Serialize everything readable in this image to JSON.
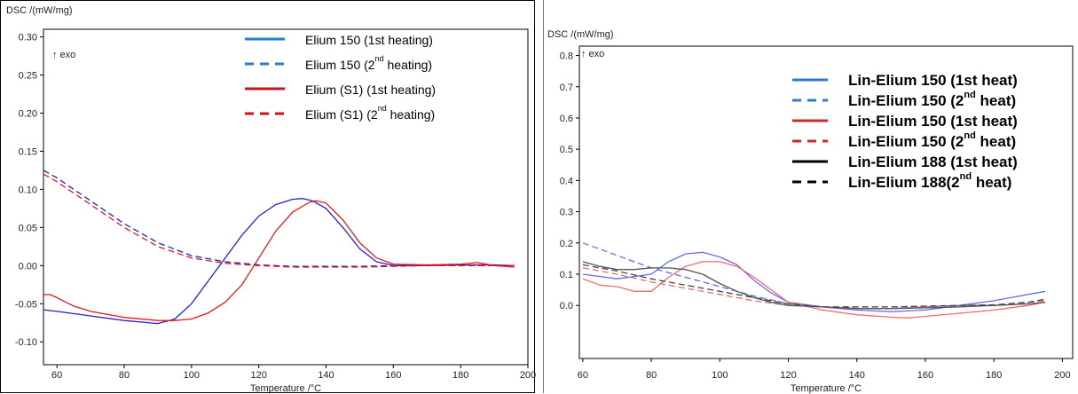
{
  "chart_data": [
    {
      "type": "line",
      "ylabel": "DSC /(mW/mg)",
      "xlabel": "Temperature /°C",
      "exo_label": "↑ exo",
      "xlim": [
        56,
        200
      ],
      "ylim": [
        -0.13,
        0.31
      ],
      "x_ticks": [
        60,
        80,
        100,
        120,
        140,
        160,
        180,
        200
      ],
      "y_ticks": [
        0.3,
        0.25,
        0.2,
        0.15,
        0.1,
        0.05,
        0.0,
        -0.05,
        -0.1
      ],
      "y_tick_labels": [
        "0.30",
        "0.25",
        "0.20",
        "0.15",
        "0.10",
        "0.05",
        "0.00",
        "-0.05",
        "-0.10"
      ],
      "grid": false,
      "legend_position": "top-center",
      "series": [
        {
          "name": "Elium 150 (1st heating)",
          "color": "#1f1fd0",
          "dash": "solid",
          "x": [
            56,
            60,
            70,
            80,
            90,
            95,
            100,
            105,
            110,
            115,
            120,
            125,
            130,
            133,
            136,
            140,
            145,
            150,
            155,
            160,
            170,
            180,
            190,
            196
          ],
          "y": [
            -0.058,
            -0.06,
            -0.066,
            -0.072,
            -0.076,
            -0.07,
            -0.05,
            -0.02,
            0.01,
            0.04,
            0.065,
            0.08,
            0.087,
            0.088,
            0.085,
            0.075,
            0.05,
            0.022,
            0.005,
            0.0,
            0.0,
            0.001,
            0.001,
            0.0
          ]
        },
        {
          "name": "Elium 150 (2nd heating)",
          "color": "#1f1fd0",
          "dash": "dashed",
          "x": [
            56,
            60,
            70,
            80,
            90,
            100,
            110,
            120,
            130,
            140,
            150,
            160,
            170,
            180,
            190,
            196
          ],
          "y": [
            0.125,
            0.115,
            0.085,
            0.055,
            0.03,
            0.013,
            0.005,
            0.001,
            -0.001,
            -0.001,
            -0.001,
            0.0,
            0.0,
            0.0,
            0.0,
            0.0
          ]
        },
        {
          "name": "Elium  (S1) (1st heating)",
          "color": "#e01818",
          "dash": "solid",
          "x": [
            56,
            58,
            60,
            65,
            70,
            80,
            90,
            95,
            100,
            105,
            110,
            115,
            120,
            125,
            130,
            135,
            137,
            140,
            145,
            150,
            155,
            160,
            170,
            180,
            185,
            190,
            196
          ],
          "y": [
            -0.038,
            -0.038,
            -0.042,
            -0.053,
            -0.06,
            -0.068,
            -0.072,
            -0.072,
            -0.07,
            -0.062,
            -0.048,
            -0.025,
            0.01,
            0.045,
            0.07,
            0.083,
            0.085,
            0.082,
            0.06,
            0.03,
            0.01,
            0.002,
            0.001,
            0.002,
            0.004,
            0.0,
            -0.002
          ]
        },
        {
          "name": "Elium (S1) (2nd heating)",
          "color": "#e01818",
          "dash": "dashed",
          "x": [
            56,
            60,
            70,
            80,
            90,
            100,
            110,
            120,
            130,
            140,
            150,
            160,
            170,
            180,
            190,
            196
          ],
          "y": [
            0.12,
            0.11,
            0.08,
            0.05,
            0.025,
            0.01,
            0.003,
            0.0,
            -0.002,
            -0.002,
            -0.002,
            -0.001,
            0.0,
            0.0,
            0.0,
            0.0
          ]
        }
      ],
      "legend": [
        {
          "pre": "Elium 150 (1st heating)",
          "sup": "",
          "post": "",
          "color": "#1f7fd6",
          "dash": "solid"
        },
        {
          "pre": "Elium 150 (2",
          "sup": "nd",
          "post": " heating)",
          "color": "#1f7fd6",
          "dash": "dashed"
        },
        {
          "pre": "Elium  (S1) (1st heating)",
          "sup": "",
          "post": "",
          "color": "#c8141e",
          "dash": "solid"
        },
        {
          "pre": "Elium (S1) (2",
          "sup": "nd",
          "post": " heating)",
          "color": "#c8141e",
          "dash": "dashed"
        }
      ]
    },
    {
      "type": "line",
      "ylabel": "DSC /(mW/mg)",
      "xlabel": "Temperature /°C",
      "exo_label": "↑ exo",
      "xlim": [
        59,
        203
      ],
      "ylim": [
        -0.17,
        0.83
      ],
      "x_ticks": [
        60,
        80,
        100,
        120,
        140,
        160,
        180,
        200
      ],
      "y_ticks": [
        0.8,
        0.7,
        0.6,
        0.5,
        0.4,
        0.3,
        0.2,
        0.1,
        0.0
      ],
      "y_tick_labels": [
        "0.8",
        "0.7",
        "0.6",
        "0.5",
        "0.4",
        "0.3",
        "0.2",
        "0.1",
        "0.0"
      ],
      "grid": false,
      "legend_position": "top-right",
      "series": [
        {
          "name": "Lin-Elium 150 (1st  heat)",
          "color": "#6a6ae6",
          "dash": "solid",
          "x": [
            60,
            70,
            80,
            85,
            90,
            95,
            100,
            105,
            110,
            115,
            120,
            130,
            140,
            150,
            160,
            170,
            180,
            190,
            195
          ],
          "y": [
            0.1,
            0.085,
            0.1,
            0.14,
            0.165,
            0.17,
            0.155,
            0.13,
            0.08,
            0.04,
            0.01,
            -0.005,
            -0.015,
            -0.02,
            -0.015,
            0.0,
            0.015,
            0.035,
            0.045
          ]
        },
        {
          "name": "Lin-Elium 150 (2nd  heat)",
          "color": "#5b6fe2",
          "dash": "dashed",
          "x": [
            60,
            70,
            80,
            90,
            100,
            110,
            120,
            130,
            140,
            150,
            160,
            170,
            180,
            190,
            195
          ],
          "y": [
            0.2,
            0.16,
            0.12,
            0.09,
            0.06,
            0.03,
            0.005,
            -0.005,
            -0.01,
            -0.01,
            -0.005,
            0.0,
            0.0,
            0.005,
            0.01
          ]
        },
        {
          "name": "Lin-Elium 150 (1st heat)",
          "color": "#ee6a6a",
          "dash": "solid",
          "x": [
            60,
            65,
            70,
            75,
            80,
            85,
            90,
            95,
            100,
            105,
            110,
            115,
            120,
            130,
            140,
            150,
            155,
            160,
            170,
            180,
            190,
            195
          ],
          "y": [
            0.085,
            0.065,
            0.06,
            0.045,
            0.045,
            0.09,
            0.125,
            0.14,
            0.14,
            0.125,
            0.09,
            0.05,
            0.01,
            -0.015,
            -0.03,
            -0.038,
            -0.04,
            -0.035,
            -0.025,
            -0.015,
            0.0,
            0.01
          ]
        },
        {
          "name": "Lin-Elium 150 (2nd  heat)",
          "color": "#e07070",
          "dash": "dashed",
          "x": [
            60,
            70,
            80,
            90,
            100,
            110,
            120,
            130,
            140,
            150,
            160,
            170,
            180,
            190,
            195
          ],
          "y": [
            0.12,
            0.1,
            0.075,
            0.055,
            0.035,
            0.015,
            0.0,
            -0.005,
            -0.005,
            -0.005,
            -0.005,
            0.0,
            0.0,
            0.01,
            0.015
          ]
        },
        {
          "name": "Lin-Elium 188 (1st heat)",
          "color": "#555555",
          "dash": "solid",
          "x": [
            60,
            65,
            70,
            75,
            80,
            85,
            90,
            95,
            100,
            105,
            110,
            115,
            120,
            130,
            140,
            150,
            160,
            170,
            180,
            190,
            195
          ],
          "y": [
            0.14,
            0.125,
            0.115,
            0.115,
            0.12,
            0.12,
            0.115,
            0.1,
            0.07,
            0.045,
            0.025,
            0.01,
            0.0,
            -0.005,
            -0.01,
            -0.01,
            -0.008,
            -0.005,
            0.0,
            0.005,
            0.01
          ]
        },
        {
          "name": "Lin-Elium 188(2nd  heat)",
          "color": "#444444",
          "dash": "dashed",
          "x": [
            60,
            70,
            80,
            90,
            100,
            110,
            120,
            130,
            140,
            150,
            160,
            170,
            180,
            190,
            195
          ],
          "y": [
            0.13,
            0.11,
            0.085,
            0.065,
            0.045,
            0.025,
            0.005,
            -0.005,
            -0.005,
            -0.005,
            -0.002,
            0.0,
            0.002,
            0.01,
            0.02
          ]
        }
      ],
      "legend": [
        {
          "pre": "Lin-Elium 150 (1st  heat)",
          "sup": "",
          "post": "",
          "color": "#2e78d0",
          "dash": "solid"
        },
        {
          "pre": "Lin-Elium 150 (2",
          "sup": "nd",
          "post": "  heat)",
          "color": "#2e78d0",
          "dash": "dashed"
        },
        {
          "pre": "Lin-Elium 150 (1st heat)",
          "sup": "",
          "post": "",
          "color": "#d02828",
          "dash": "solid"
        },
        {
          "pre": "Lin-Elium 150 (2",
          "sup": "nd",
          "post": "  heat)",
          "color": "#d02828",
          "dash": "dashed"
        },
        {
          "pre": "Lin-Elium 188 (1st heat)",
          "sup": "",
          "post": "",
          "color": "#000000",
          "dash": "solid"
        },
        {
          "pre": "Lin-Elium 188(2",
          "sup": "nd",
          "post": "  heat)",
          "color": "#000000",
          "dash": "dashed"
        }
      ]
    }
  ]
}
